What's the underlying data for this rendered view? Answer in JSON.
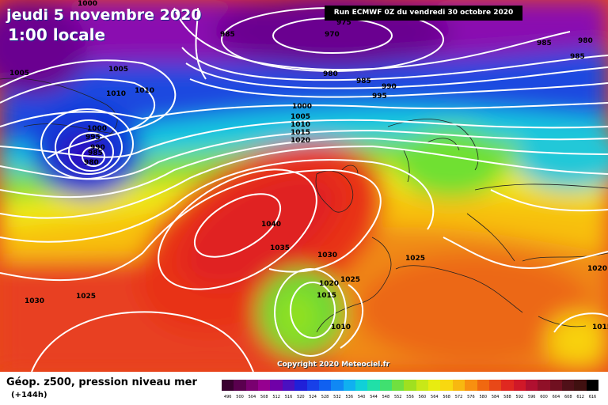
{
  "header": {
    "date": "jeudi 5 novembre 2020",
    "time": "1:00 locale",
    "run": "Run ECMWF 0Z du vendredi 30 octobre 2020"
  },
  "footer": {
    "copyright": "Copyright 2020 Meteociel.fr",
    "legend_title": "Géop. z500, pression niveau mer",
    "legend_subtitle": "(+144h)"
  },
  "legend": {
    "ticks": [
      "496",
      "500",
      "504",
      "508",
      "512",
      "516",
      "520",
      "524",
      "528",
      "532",
      "536",
      "540",
      "544",
      "548",
      "552",
      "556",
      "560",
      "564",
      "568",
      "572",
      "576",
      "580",
      "584",
      "588",
      "592",
      "596",
      "600",
      "604",
      "608",
      "612",
      "616"
    ],
    "colors": [
      "#3a0030",
      "#5a004e",
      "#7a0070",
      "#960090",
      "#7000a8",
      "#4a10c0",
      "#2020d8",
      "#1840e8",
      "#1060f0",
      "#1088f4",
      "#10b0f0",
      "#10d0d8",
      "#20e0a8",
      "#40e070",
      "#70e040",
      "#a0e020",
      "#c8e818",
      "#e8ec10",
      "#f8d810",
      "#f8b810",
      "#f89010",
      "#f06810",
      "#e84818",
      "#e02820",
      "#d01828",
      "#b01030",
      "#901028",
      "#701020",
      "#501018",
      "#401010",
      "#000000"
    ]
  },
  "pressure_labels": [
    {
      "id": "p-1000-top",
      "text": "1000"
    },
    {
      "id": "p-985-nw",
      "text": "985"
    },
    {
      "id": "p-975",
      "text": "975"
    },
    {
      "id": "p-970",
      "text": "970"
    },
    {
      "id": "p-985-ne",
      "text": "985"
    },
    {
      "id": "p-980-ne",
      "text": "980"
    },
    {
      "id": "p-985-ne2",
      "text": "985"
    },
    {
      "id": "p-1005-w",
      "text": "1005"
    },
    {
      "id": "p-1005-a",
      "text": "1005"
    },
    {
      "id": "p-1010-a",
      "text": "1010"
    },
    {
      "id": "p-1010-b",
      "text": "1010"
    },
    {
      "id": "p-980-c",
      "text": "980"
    },
    {
      "id": "p-985-c",
      "text": "985"
    },
    {
      "id": "p-990-c",
      "text": "990"
    },
    {
      "id": "p-995-c",
      "text": "995"
    },
    {
      "id": "p-1000-low",
      "text": "1000"
    },
    {
      "id": "p-995-low",
      "text": "995"
    },
    {
      "id": "p-990-low",
      "text": "990"
    },
    {
      "id": "p-985-low",
      "text": "985"
    },
    {
      "id": "p-980-low",
      "text": "980"
    },
    {
      "id": "p-1000-m",
      "text": "1000"
    },
    {
      "id": "p-1005-m",
      "text": "1005"
    },
    {
      "id": "p-1010-m",
      "text": "1010"
    },
    {
      "id": "p-1015-m",
      "text": "1015"
    },
    {
      "id": "p-1020-m",
      "text": "1020"
    },
    {
      "id": "p-1040",
      "text": "1040"
    },
    {
      "id": "p-1035",
      "text": "1035"
    },
    {
      "id": "p-1030-c",
      "text": "1030"
    },
    {
      "id": "p-1025-e",
      "text": "1025"
    },
    {
      "id": "p-1020-s",
      "text": "1020"
    },
    {
      "id": "p-1025-s",
      "text": "1025"
    },
    {
      "id": "p-1015-s",
      "text": "1015"
    },
    {
      "id": "p-1010-s",
      "text": "1010"
    },
    {
      "id": "p-1030-w",
      "text": "1030"
    },
    {
      "id": "p-1025-w",
      "text": "1025"
    },
    {
      "id": "p-1020-e",
      "text": "1020"
    },
    {
      "id": "p-1015-e",
      "text": "1015"
    }
  ]
}
